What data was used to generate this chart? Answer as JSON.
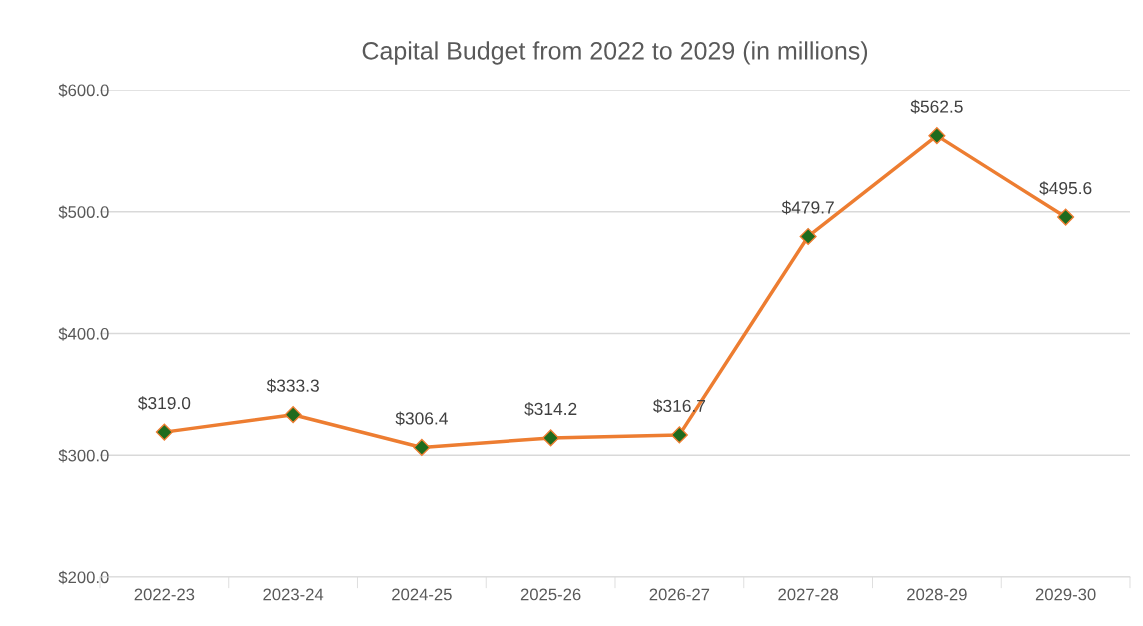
{
  "chart_data": {
    "type": "line",
    "title": "Capital Budget from 2022 to 2029 (in millions)",
    "categories": [
      "2022-23",
      "2023-24",
      "2024-25",
      "2025-26",
      "2026-27",
      "2027-28",
      "2028-29",
      "2029-30"
    ],
    "series": [
      {
        "color": "#ed7d31",
        "values": [
          319.0,
          333.3,
          306.4,
          314.2,
          316.7,
          479.7,
          562.5,
          495.6
        ],
        "colors": [
          "#1e6b1e",
          "#1e6b1e",
          "#1e6b1e",
          "#1e6b1e",
          "#1e6b1e",
          "#1e6b1e",
          "#1e6b1e",
          "#1e6b1e"
        ],
        "value_labels": [
          "$319.0",
          "$333.3",
          "$306.4",
          "$314.2",
          "$316.7",
          "$479.7",
          "$562.5",
          "$495.6"
        ]
      }
    ],
    "ylim": [
      200,
      600
    ],
    "yticks": [
      {
        "value": 200,
        "label": "$200.0"
      },
      {
        "value": 300,
        "label": "$300.0"
      },
      {
        "value": 400,
        "label": "$400.0"
      },
      {
        "value": 500,
        "label": "$500.0"
      },
      {
        "value": 600,
        "label": "$600.0"
      }
    ],
    "grid": "y",
    "marker": "diamond",
    "line_style": "solid",
    "legend": false
  }
}
